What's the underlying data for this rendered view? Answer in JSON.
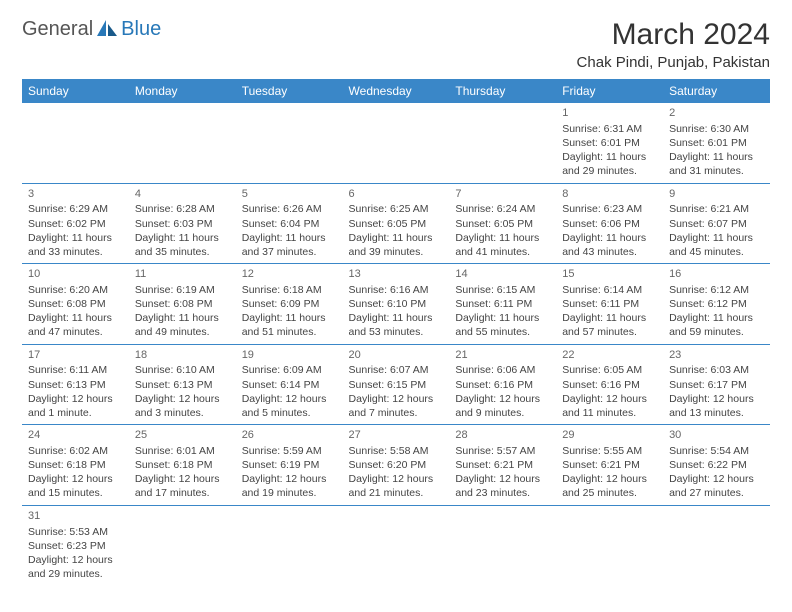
{
  "logo": {
    "general": "General",
    "blue": "Blue"
  },
  "title": "March 2024",
  "location": "Chak Pindi, Punjab, Pakistan",
  "colors": {
    "header_bg": "#3a87c8",
    "header_text": "#ffffff",
    "border": "#3a87c8",
    "logo_blue": "#2878b8",
    "logo_gray": "#555555",
    "body_text": "#444444",
    "background": "#ffffff"
  },
  "weekdays": [
    "Sunday",
    "Monday",
    "Tuesday",
    "Wednesday",
    "Thursday",
    "Friday",
    "Saturday"
  ],
  "weeks": [
    [
      null,
      null,
      null,
      null,
      null,
      {
        "n": "1",
        "sr": "Sunrise: 6:31 AM",
        "ss": "Sunset: 6:01 PM",
        "d1": "Daylight: 11 hours",
        "d2": "and 29 minutes."
      },
      {
        "n": "2",
        "sr": "Sunrise: 6:30 AM",
        "ss": "Sunset: 6:01 PM",
        "d1": "Daylight: 11 hours",
        "d2": "and 31 minutes."
      }
    ],
    [
      {
        "n": "3",
        "sr": "Sunrise: 6:29 AM",
        "ss": "Sunset: 6:02 PM",
        "d1": "Daylight: 11 hours",
        "d2": "and 33 minutes."
      },
      {
        "n": "4",
        "sr": "Sunrise: 6:28 AM",
        "ss": "Sunset: 6:03 PM",
        "d1": "Daylight: 11 hours",
        "d2": "and 35 minutes."
      },
      {
        "n": "5",
        "sr": "Sunrise: 6:26 AM",
        "ss": "Sunset: 6:04 PM",
        "d1": "Daylight: 11 hours",
        "d2": "and 37 minutes."
      },
      {
        "n": "6",
        "sr": "Sunrise: 6:25 AM",
        "ss": "Sunset: 6:05 PM",
        "d1": "Daylight: 11 hours",
        "d2": "and 39 minutes."
      },
      {
        "n": "7",
        "sr": "Sunrise: 6:24 AM",
        "ss": "Sunset: 6:05 PM",
        "d1": "Daylight: 11 hours",
        "d2": "and 41 minutes."
      },
      {
        "n": "8",
        "sr": "Sunrise: 6:23 AM",
        "ss": "Sunset: 6:06 PM",
        "d1": "Daylight: 11 hours",
        "d2": "and 43 minutes."
      },
      {
        "n": "9",
        "sr": "Sunrise: 6:21 AM",
        "ss": "Sunset: 6:07 PM",
        "d1": "Daylight: 11 hours",
        "d2": "and 45 minutes."
      }
    ],
    [
      {
        "n": "10",
        "sr": "Sunrise: 6:20 AM",
        "ss": "Sunset: 6:08 PM",
        "d1": "Daylight: 11 hours",
        "d2": "and 47 minutes."
      },
      {
        "n": "11",
        "sr": "Sunrise: 6:19 AM",
        "ss": "Sunset: 6:08 PM",
        "d1": "Daylight: 11 hours",
        "d2": "and 49 minutes."
      },
      {
        "n": "12",
        "sr": "Sunrise: 6:18 AM",
        "ss": "Sunset: 6:09 PM",
        "d1": "Daylight: 11 hours",
        "d2": "and 51 minutes."
      },
      {
        "n": "13",
        "sr": "Sunrise: 6:16 AM",
        "ss": "Sunset: 6:10 PM",
        "d1": "Daylight: 11 hours",
        "d2": "and 53 minutes."
      },
      {
        "n": "14",
        "sr": "Sunrise: 6:15 AM",
        "ss": "Sunset: 6:11 PM",
        "d1": "Daylight: 11 hours",
        "d2": "and 55 minutes."
      },
      {
        "n": "15",
        "sr": "Sunrise: 6:14 AM",
        "ss": "Sunset: 6:11 PM",
        "d1": "Daylight: 11 hours",
        "d2": "and 57 minutes."
      },
      {
        "n": "16",
        "sr": "Sunrise: 6:12 AM",
        "ss": "Sunset: 6:12 PM",
        "d1": "Daylight: 11 hours",
        "d2": "and 59 minutes."
      }
    ],
    [
      {
        "n": "17",
        "sr": "Sunrise: 6:11 AM",
        "ss": "Sunset: 6:13 PM",
        "d1": "Daylight: 12 hours",
        "d2": "and 1 minute."
      },
      {
        "n": "18",
        "sr": "Sunrise: 6:10 AM",
        "ss": "Sunset: 6:13 PM",
        "d1": "Daylight: 12 hours",
        "d2": "and 3 minutes."
      },
      {
        "n": "19",
        "sr": "Sunrise: 6:09 AM",
        "ss": "Sunset: 6:14 PM",
        "d1": "Daylight: 12 hours",
        "d2": "and 5 minutes."
      },
      {
        "n": "20",
        "sr": "Sunrise: 6:07 AM",
        "ss": "Sunset: 6:15 PM",
        "d1": "Daylight: 12 hours",
        "d2": "and 7 minutes."
      },
      {
        "n": "21",
        "sr": "Sunrise: 6:06 AM",
        "ss": "Sunset: 6:16 PM",
        "d1": "Daylight: 12 hours",
        "d2": "and 9 minutes."
      },
      {
        "n": "22",
        "sr": "Sunrise: 6:05 AM",
        "ss": "Sunset: 6:16 PM",
        "d1": "Daylight: 12 hours",
        "d2": "and 11 minutes."
      },
      {
        "n": "23",
        "sr": "Sunrise: 6:03 AM",
        "ss": "Sunset: 6:17 PM",
        "d1": "Daylight: 12 hours",
        "d2": "and 13 minutes."
      }
    ],
    [
      {
        "n": "24",
        "sr": "Sunrise: 6:02 AM",
        "ss": "Sunset: 6:18 PM",
        "d1": "Daylight: 12 hours",
        "d2": "and 15 minutes."
      },
      {
        "n": "25",
        "sr": "Sunrise: 6:01 AM",
        "ss": "Sunset: 6:18 PM",
        "d1": "Daylight: 12 hours",
        "d2": "and 17 minutes."
      },
      {
        "n": "26",
        "sr": "Sunrise: 5:59 AM",
        "ss": "Sunset: 6:19 PM",
        "d1": "Daylight: 12 hours",
        "d2": "and 19 minutes."
      },
      {
        "n": "27",
        "sr": "Sunrise: 5:58 AM",
        "ss": "Sunset: 6:20 PM",
        "d1": "Daylight: 12 hours",
        "d2": "and 21 minutes."
      },
      {
        "n": "28",
        "sr": "Sunrise: 5:57 AM",
        "ss": "Sunset: 6:21 PM",
        "d1": "Daylight: 12 hours",
        "d2": "and 23 minutes."
      },
      {
        "n": "29",
        "sr": "Sunrise: 5:55 AM",
        "ss": "Sunset: 6:21 PM",
        "d1": "Daylight: 12 hours",
        "d2": "and 25 minutes."
      },
      {
        "n": "30",
        "sr": "Sunrise: 5:54 AM",
        "ss": "Sunset: 6:22 PM",
        "d1": "Daylight: 12 hours",
        "d2": "and 27 minutes."
      }
    ],
    [
      {
        "n": "31",
        "sr": "Sunrise: 5:53 AM",
        "ss": "Sunset: 6:23 PM",
        "d1": "Daylight: 12 hours",
        "d2": "and 29 minutes."
      },
      null,
      null,
      null,
      null,
      null,
      null
    ]
  ]
}
